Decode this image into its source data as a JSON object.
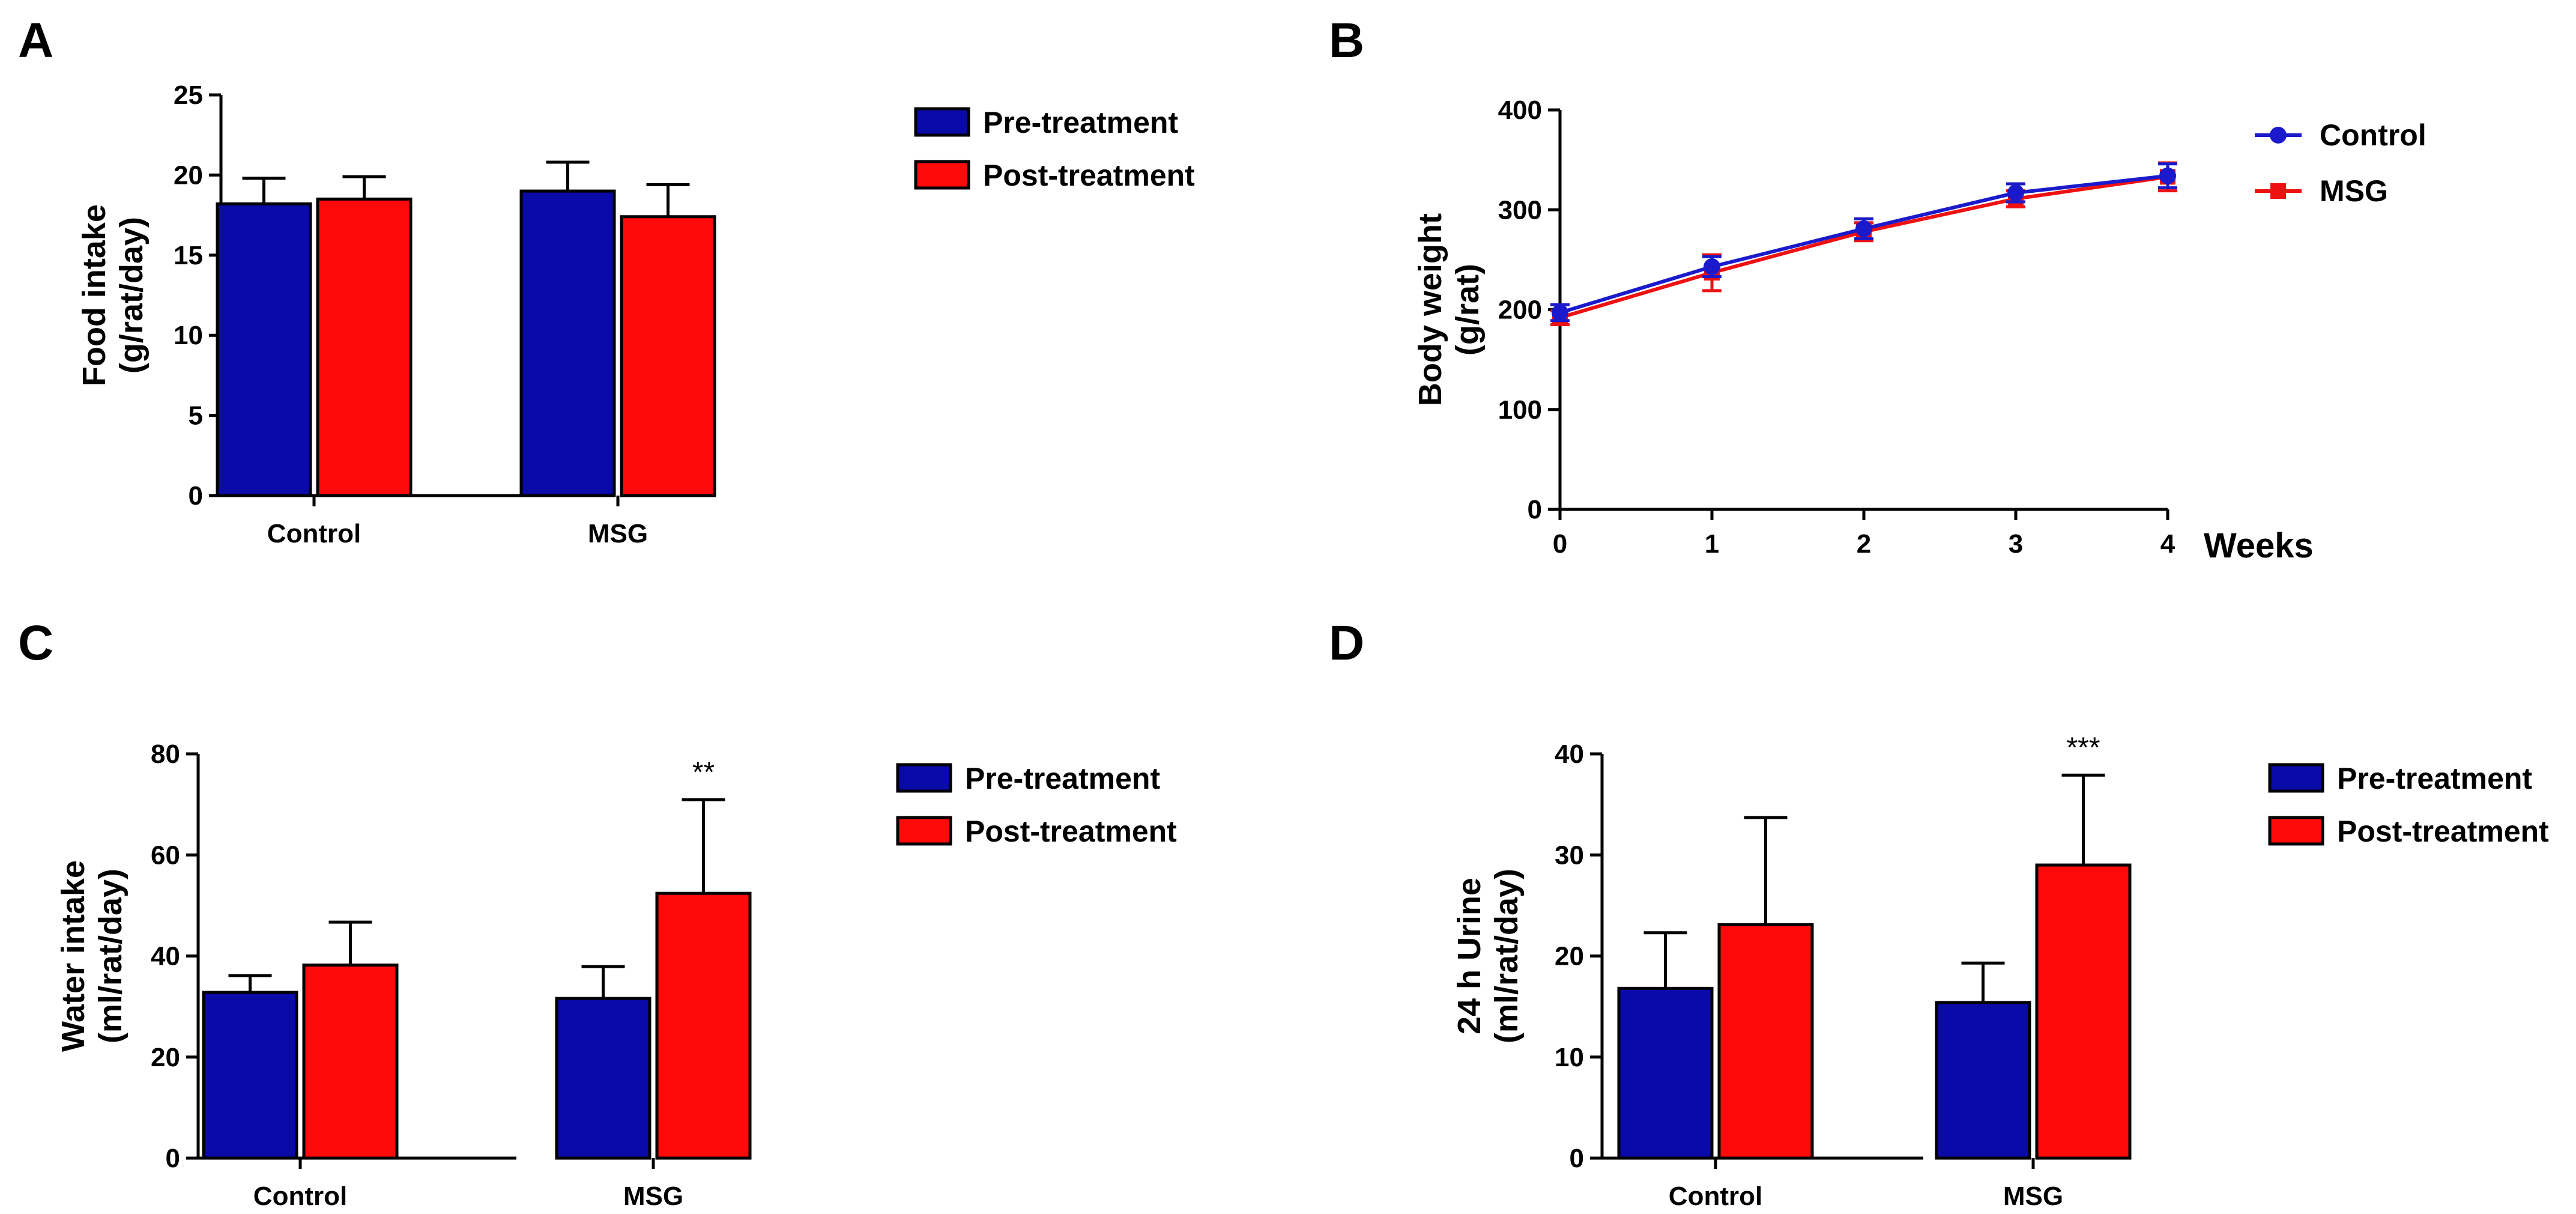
{
  "colors": {
    "pre": "#0a0aa8",
    "post": "#ff0a0a",
    "control_line": "#1a1acc",
    "msg_line": "#ee1111",
    "axis": "#000000"
  },
  "chart_data": [
    {
      "panel": "A",
      "type": "bar",
      "categories": [
        "Control",
        "MSG"
      ],
      "series": [
        {
          "name": "Pre-treatment",
          "values": [
            18.2,
            19.0
          ],
          "errors": [
            1.6,
            1.8
          ]
        },
        {
          "name": "Post-treatment",
          "values": [
            18.5,
            17.4
          ],
          "errors": [
            1.4,
            2.0
          ]
        }
      ],
      "ylabel": [
        "Food intake",
        "(g/rat/day)"
      ],
      "ylim": [
        0,
        25
      ],
      "yticks": [
        "0",
        "5",
        "10",
        "15",
        "20",
        "25"
      ],
      "annotations": [
        "",
        ""
      ],
      "legend": [
        "Pre-treatment",
        "Post-treatment"
      ],
      "legend_position": "top-right"
    },
    {
      "panel": "B",
      "type": "line",
      "x": [
        0,
        1,
        2,
        3,
        4
      ],
      "xticks": [
        "0",
        "1",
        "2",
        "3",
        "4"
      ],
      "xlabel": "Weeks",
      "series": [
        {
          "name": "Control",
          "values": [
            197,
            243,
            281,
            317,
            334
          ],
          "errors": [
            8,
            10,
            10,
            9,
            12
          ],
          "marker": "circle"
        },
        {
          "name": "MSG",
          "values": [
            192,
            237,
            278,
            311,
            333
          ],
          "errors": [
            7,
            18,
            9,
            8,
            14
          ],
          "marker": "square"
        }
      ],
      "ylabel": [
        "Body weight",
        "(g/rat)"
      ],
      "ylim": [
        0,
        400
      ],
      "yticks": [
        "0",
        "100",
        "200",
        "300",
        "400"
      ],
      "legend": [
        "Control",
        "MSG"
      ],
      "legend_position": "top-right"
    },
    {
      "panel": "C",
      "type": "bar",
      "categories": [
        "Control",
        "MSG"
      ],
      "series": [
        {
          "name": "Pre-treatment",
          "values": [
            32.8,
            31.6
          ],
          "errors": [
            3.3,
            6.3
          ]
        },
        {
          "name": "Post-treatment",
          "values": [
            38.2,
            52.4
          ],
          "errors": [
            8.5,
            18.5
          ]
        }
      ],
      "ylabel": [
        "Water intake",
        "(ml/rat/day)"
      ],
      "ylim": [
        0,
        80
      ],
      "yticks": [
        "0",
        "20",
        "40",
        "60",
        "80"
      ],
      "annotations": [
        "",
        "**"
      ],
      "legend": [
        "Pre-treatment",
        "Post-treatment"
      ],
      "legend_position": "top-right"
    },
    {
      "panel": "D",
      "type": "bar",
      "categories": [
        "Control",
        "MSG"
      ],
      "series": [
        {
          "name": "Pre-treatment",
          "values": [
            16.8,
            15.4
          ],
          "errors": [
            5.5,
            3.9
          ]
        },
        {
          "name": "Post-treatment",
          "values": [
            23.1,
            29.0
          ],
          "errors": [
            10.6,
            8.9
          ]
        }
      ],
      "ylabel": [
        "24 h Urine",
        "(ml/rat/day)"
      ],
      "ylim": [
        0,
        40
      ],
      "yticks": [
        "0",
        "10",
        "20",
        "30",
        "40"
      ],
      "annotations": [
        "",
        "***"
      ],
      "legend": [
        "Pre-treatment",
        "Post-treatment"
      ],
      "legend_position": "top-right"
    }
  ]
}
